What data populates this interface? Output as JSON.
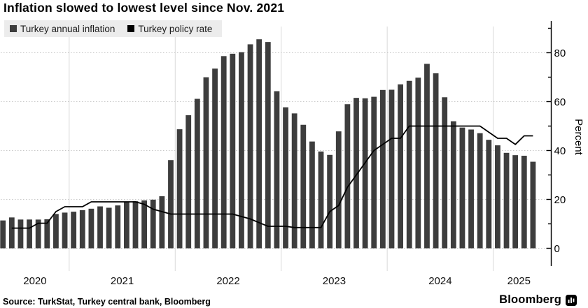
{
  "header": {
    "title": "Inflation slowed to lowest level since Nov. 2021"
  },
  "legend": {
    "items": [
      {
        "label": "Turkey annual inflation",
        "color": "#3d3d3d"
      },
      {
        "label": "Turkey policy rate",
        "color": "#000000"
      }
    ]
  },
  "chart_data": {
    "type": "bar",
    "title": "Inflation slowed to lowest level since Nov. 2021",
    "xlabel": "",
    "ylabel": "Percent",
    "ylim": [
      0,
      90
    ],
    "yticks": [
      0,
      20,
      40,
      60,
      80
    ],
    "yticks_minor": [
      10,
      30,
      50,
      70,
      90
    ],
    "grid": "horizontal-dotted, vertical-year-separators",
    "legend_position": "top-left",
    "x": [
      "2020-05",
      "2020-06",
      "2020-07",
      "2020-08",
      "2020-09",
      "2020-10",
      "2020-11",
      "2020-12",
      "2021-01",
      "2021-02",
      "2021-03",
      "2021-04",
      "2021-05",
      "2021-06",
      "2021-07",
      "2021-08",
      "2021-09",
      "2021-10",
      "2021-11",
      "2021-12",
      "2022-01",
      "2022-02",
      "2022-03",
      "2022-04",
      "2022-05",
      "2022-06",
      "2022-07",
      "2022-08",
      "2022-09",
      "2022-10",
      "2022-11",
      "2022-12",
      "2023-01",
      "2023-02",
      "2023-03",
      "2023-04",
      "2023-05",
      "2023-06",
      "2023-07",
      "2023-08",
      "2023-09",
      "2023-10",
      "2023-11",
      "2023-12",
      "2024-01",
      "2024-02",
      "2024-03",
      "2024-04",
      "2024-05",
      "2024-06",
      "2024-07",
      "2024-08",
      "2024-09",
      "2024-10",
      "2024-11",
      "2024-12",
      "2025-01",
      "2025-02",
      "2025-03",
      "2025-04",
      "2025-05"
    ],
    "year_labels": [
      "2020",
      "2021",
      "2022",
      "2023",
      "2024",
      "2025"
    ],
    "months_per_year": [
      8,
      12,
      12,
      12,
      12,
      5
    ],
    "series": [
      {
        "name": "Turkey annual inflation",
        "type": "bar",
        "color": "#3d3d3d",
        "values": [
          11.39,
          12.62,
          11.76,
          11.77,
          11.75,
          11.89,
          14.03,
          14.6,
          14.97,
          15.61,
          16.19,
          17.14,
          16.59,
          17.53,
          18.95,
          19.25,
          19.58,
          19.89,
          21.31,
          36.08,
          48.69,
          54.44,
          61.14,
          69.97,
          73.5,
          78.62,
          79.6,
          80.21,
          83.45,
          85.51,
          84.39,
          64.27,
          57.68,
          55.18,
          50.51,
          43.68,
          39.59,
          38.21,
          47.83,
          58.94,
          61.53,
          61.36,
          61.98,
          64.77,
          64.86,
          67.07,
          68.5,
          69.8,
          75.45,
          71.6,
          61.78,
          51.97,
          49.38,
          48.58,
          47.09,
          44.38,
          42.12,
          39.05,
          38.1,
          37.86,
          35.41
        ]
      },
      {
        "name": "Turkey policy rate",
        "type": "line",
        "color": "#000000",
        "values": [
          null,
          8.25,
          8.25,
          8.25,
          10.25,
          10.25,
          15,
          17,
          17,
          17,
          19,
          19,
          19,
          19,
          19,
          19,
          18,
          16,
          15,
          14,
          14,
          14,
          14,
          14,
          14,
          14,
          14,
          13,
          12,
          10.5,
          9,
          9,
          9,
          8.5,
          8.5,
          8.5,
          8.5,
          15,
          17.5,
          25,
          30,
          35,
          40,
          42.5,
          45,
          45,
          50,
          50,
          50,
          50,
          50,
          50,
          50,
          50,
          50,
          47.5,
          45,
          45,
          42.5,
          46,
          46
        ]
      }
    ]
  },
  "footer": {
    "source": "Source: TurkStat, Turkey central bank, Bloomberg",
    "brand": "Bloomberg"
  }
}
